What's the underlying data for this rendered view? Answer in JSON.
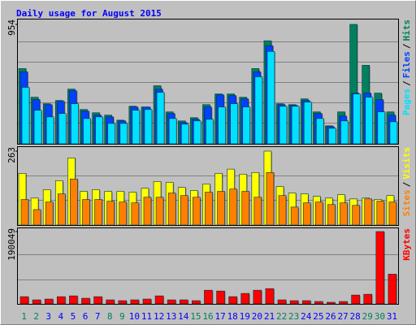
{
  "chart_data": {
    "type": "bar",
    "title": "Daily usage for August 2015",
    "categories": [
      "1",
      "2",
      "3",
      "4",
      "5",
      "6",
      "7",
      "8",
      "9",
      "10",
      "11",
      "12",
      "13",
      "14",
      "15",
      "16",
      "17",
      "18",
      "19",
      "20",
      "21",
      "22",
      "23",
      "24",
      "25",
      "26",
      "27",
      "28",
      "29",
      "30",
      "31"
    ],
    "category_colors": [
      "#00805c",
      "#00805c",
      "#0000ff",
      "#0000ff",
      "#0000ff",
      "#0000ff",
      "#0000ff",
      "#00805c",
      "#00805c",
      "#0000ff",
      "#0000ff",
      "#0000ff",
      "#0000ff",
      "#0000ff",
      "#00805c",
      "#00805c",
      "#0000ff",
      "#0000ff",
      "#0000ff",
      "#0000ff",
      "#0000ff",
      "#00805c",
      "#00805c",
      "#0000ff",
      "#0000ff",
      "#0000ff",
      "#0000ff",
      "#0000ff",
      "#00805c",
      "#00805c",
      "#0000ff"
    ],
    "legend_separator": "/",
    "panels": [
      {
        "ylim": [
          0,
          954
        ],
        "yticks": [
          954
        ],
        "series": [
          {
            "name": "Hits",
            "color": "#00805c",
            "values": [
              601,
              372,
              320,
              346,
              437,
              274,
              248,
              229,
              189,
              300,
              294,
              464,
              255,
              183,
              209,
              313,
              398,
              398,
              372,
              601,
              823,
              320,
              313,
              359,
              255,
              144,
              255,
              954,
              627,
              405,
              255
            ]
          },
          {
            "name": "Files",
            "color": "#0040ff",
            "values": [
              575,
              353,
              313,
              340,
              424,
              261,
              229,
              215,
              183,
              294,
              294,
              437,
              242,
              170,
              196,
              294,
              392,
              385,
              359,
              575,
              784,
              313,
              307,
              346,
              242,
              137,
              222,
              405,
              405,
              353,
              229
            ]
          },
          {
            "name": "Pages",
            "color": "#00e0ff",
            "values": [
              451,
              268,
              215,
              242,
              320,
              202,
              215,
              163,
              163,
              268,
              274,
              411,
              202,
              157,
              183,
              196,
              294,
              320,
              294,
              535,
              738,
              300,
              300,
              333,
              202,
              124,
              183,
              398,
              372,
              255,
              176
            ]
          }
        ]
      },
      {
        "ylim": [
          0,
          263
        ],
        "yticks": [
          263
        ],
        "series": [
          {
            "name": "Visits",
            "color": "#ffff00",
            "values": [
              184,
              96,
              126,
              158,
              239,
              120,
              126,
              120,
              120,
              117,
              131,
              155,
              152,
              134,
              123,
              146,
              184,
              199,
              181,
              187,
              263,
              137,
              114,
              111,
              102,
              96,
              108,
              93,
              96,
              91,
              105
            ]
          },
          {
            "name": "Sites",
            "color": "#ff8000",
            "values": [
              91,
              55,
              82,
              111,
              164,
              91,
              91,
              85,
              82,
              79,
              99,
              99,
              114,
              105,
              99,
              117,
              120,
              128,
              120,
              99,
              187,
              105,
              64,
              79,
              82,
              73,
              79,
              70,
              93,
              85,
              82
            ]
          }
        ]
      },
      {
        "ylim": [
          0,
          190049
        ],
        "yticks": [
          190049
        ],
        "series": [
          {
            "name": "KBytes",
            "color": "#ff0000",
            "values": [
              19000,
              10560,
              12670,
              19000,
              21100,
              14800,
              19000,
              10560,
              8450,
              10560,
              12670,
              21100,
              10560,
              10560,
              8450,
              35900,
              33800,
              19000,
              27500,
              35900,
              40100,
              10560,
              8450,
              8450,
              6340,
              4220,
              6340,
              23200,
              25300,
              190049,
              78100
            ]
          }
        ]
      }
    ]
  }
}
